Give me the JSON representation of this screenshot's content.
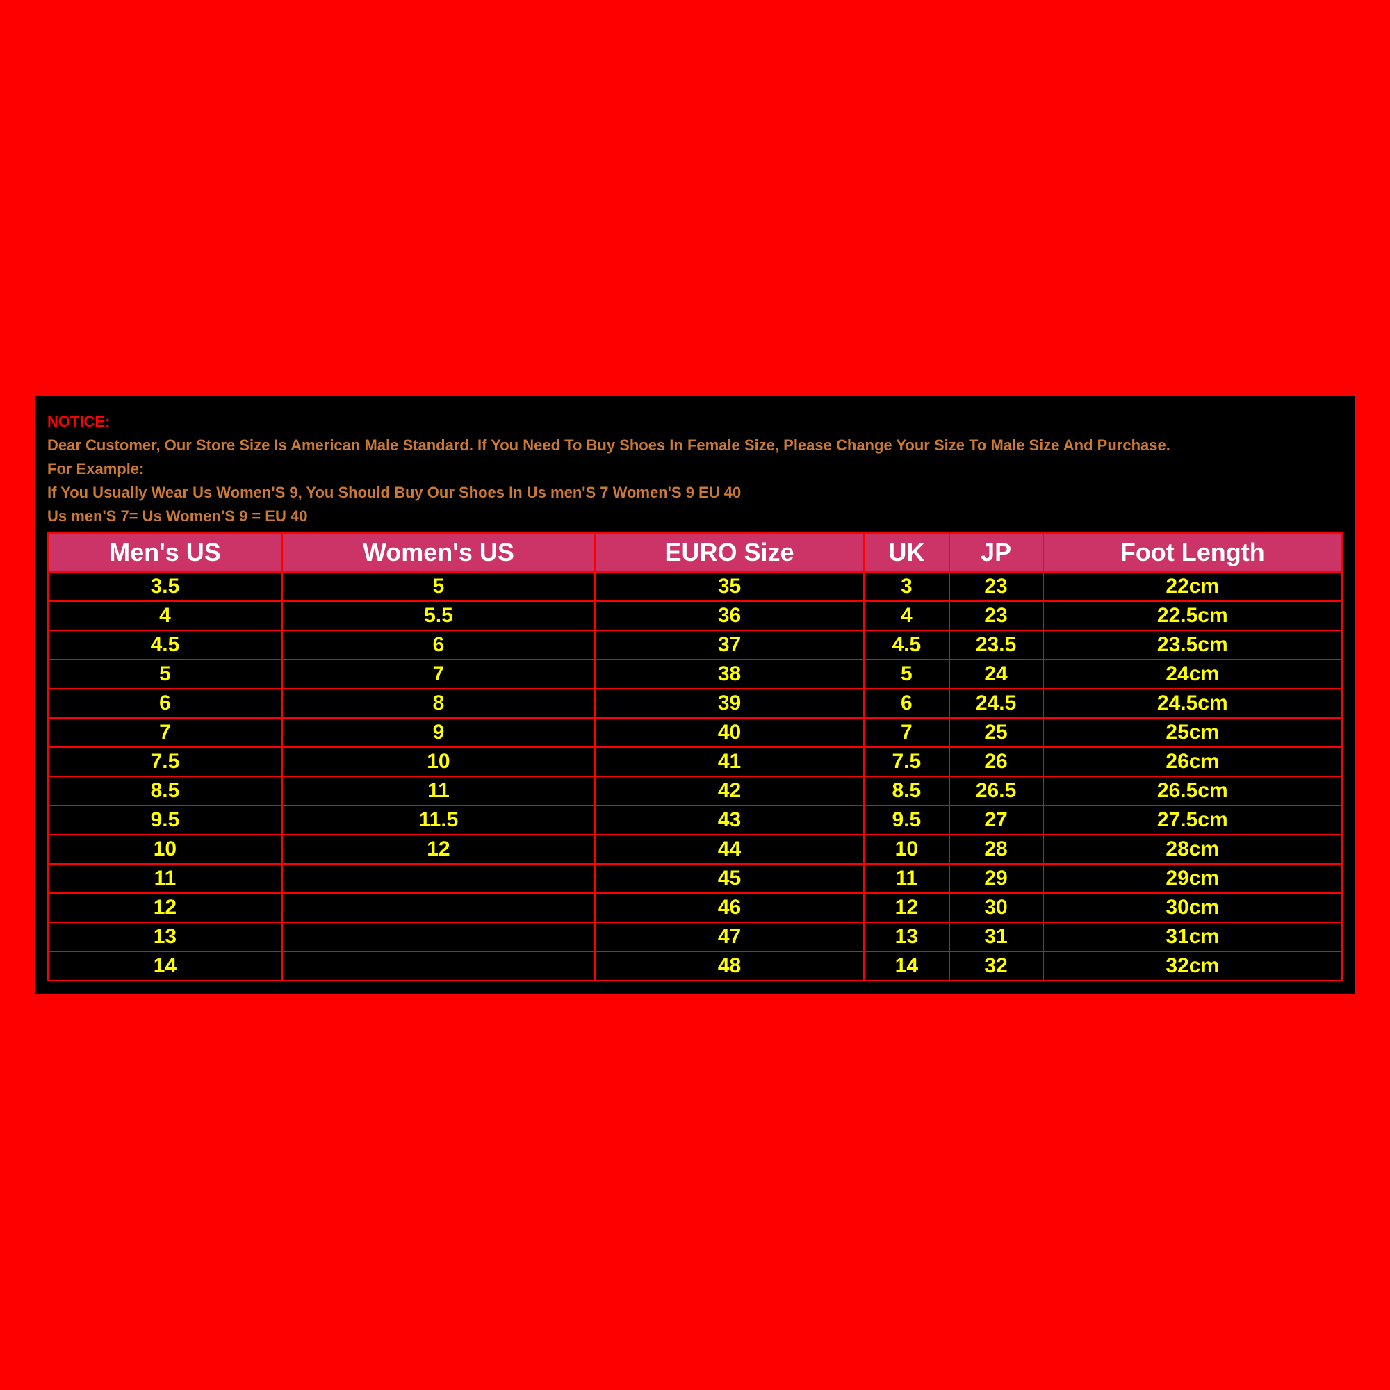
{
  "page": {
    "background_color": "#ff0000",
    "panel_color": "#000000"
  },
  "notice": {
    "label": "NOTICE:",
    "line1": "Dear Customer, Our Store Size Is American Male Standard. If You Need To Buy Shoes In Female Size, Please Change Your Size To Male Size And Purchase.",
    "line2": "For Example:",
    "line3": "If You Usually Wear Us Women'S 9, You Should Buy Our Shoes In Us men'S 7  Women'S 9 EU 40",
    "line4": "Us men'S 7= Us Women'S 9 = EU 40",
    "label_color": "#ff0000",
    "text_color": "#cc7a33",
    "font_size_pt": 16
  },
  "table": {
    "type": "table",
    "header_bg": "#cc3366",
    "header_text_color": "#ffffff",
    "header_fontsize": 36,
    "cell_text_color": "#ffff00",
    "cell_bg": "#000000",
    "cell_fontsize": 30,
    "border_color": "#ff0000",
    "border_width": 2,
    "columns": [
      "Men's US",
      "Women's US",
      "EURO Size",
      "UK",
      "JP",
      "Foot Length"
    ],
    "rows": [
      [
        "3.5",
        "5",
        "35",
        "3",
        "23",
        "22cm"
      ],
      [
        "4",
        "5.5",
        "36",
        "4",
        "23",
        "22.5cm"
      ],
      [
        "4.5",
        "6",
        "37",
        "4.5",
        "23.5",
        "23.5cm"
      ],
      [
        "5",
        "7",
        "38",
        "5",
        "24",
        "24cm"
      ],
      [
        "6",
        "8",
        "39",
        "6",
        "24.5",
        "24.5cm"
      ],
      [
        "7",
        "9",
        "40",
        "7",
        "25",
        "25cm"
      ],
      [
        "7.5",
        "10",
        "41",
        "7.5",
        "26",
        "26cm"
      ],
      [
        "8.5",
        "11",
        "42",
        "8.5",
        "26.5",
        "26.5cm"
      ],
      [
        "9.5",
        "11.5",
        "43",
        "9.5",
        "27",
        "27.5cm"
      ],
      [
        "10",
        "12",
        "44",
        "10",
        "28",
        "28cm"
      ],
      [
        "11",
        "",
        "45",
        "11",
        "29",
        "29cm"
      ],
      [
        "12",
        "",
        "46",
        "12",
        "30",
        "30cm"
      ],
      [
        "13",
        "",
        "47",
        "13",
        "31",
        "31cm"
      ],
      [
        "14",
        "",
        "48",
        "14",
        "32",
        "32cm"
      ]
    ]
  }
}
